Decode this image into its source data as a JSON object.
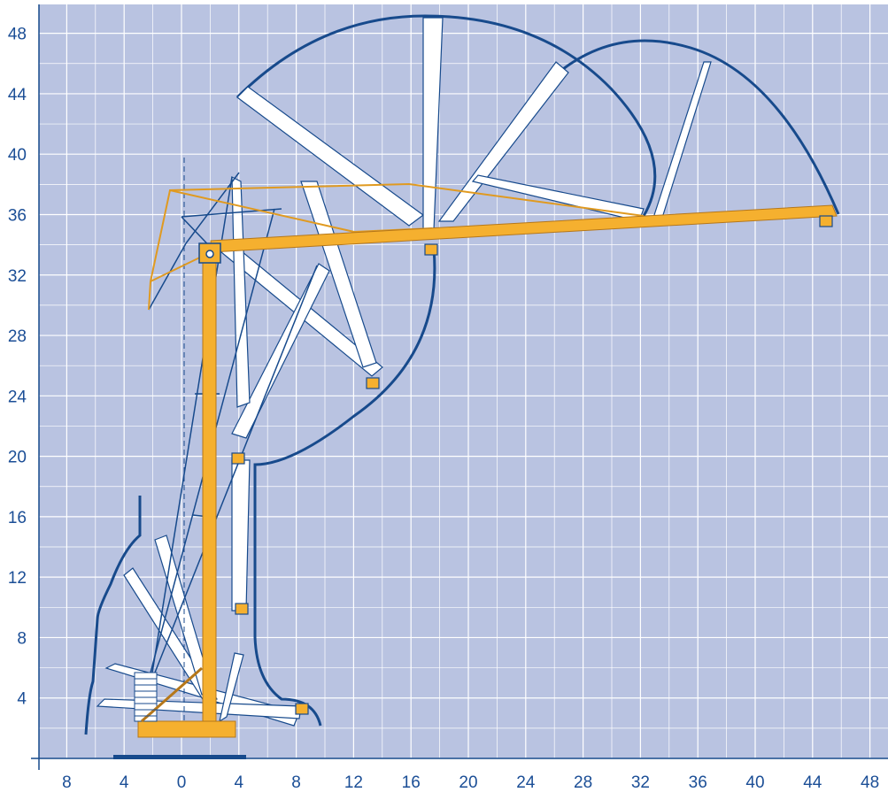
{
  "diagram": {
    "type": "crane working range diagram",
    "x_ticks": [
      "8",
      "4",
      "0",
      "4",
      "8",
      "12",
      "16",
      "20",
      "24",
      "28",
      "32",
      "36",
      "40",
      "44",
      "48"
    ],
    "x_tick_values": [
      -8,
      -4,
      0,
      4,
      8,
      12,
      16,
      20,
      24,
      28,
      32,
      36,
      40,
      44,
      48
    ],
    "y_ticks": [
      "4",
      "8",
      "12",
      "16",
      "20",
      "24",
      "28",
      "32",
      "36",
      "40",
      "44",
      "48"
    ],
    "y_tick_values": [
      4,
      8,
      12,
      16,
      20,
      24,
      28,
      32,
      36,
      40,
      44,
      48
    ],
    "x_range": [
      -10,
      49.5
    ],
    "y_range": [
      0,
      49.5
    ],
    "grid": true,
    "colors": {
      "background": "#b9c3e1",
      "grid": "#ffffff",
      "outline": "#174a8c",
      "tick_text": "#1b4e96",
      "crane": "#f5a623",
      "jib_ghost": "#ffffff"
    }
  }
}
